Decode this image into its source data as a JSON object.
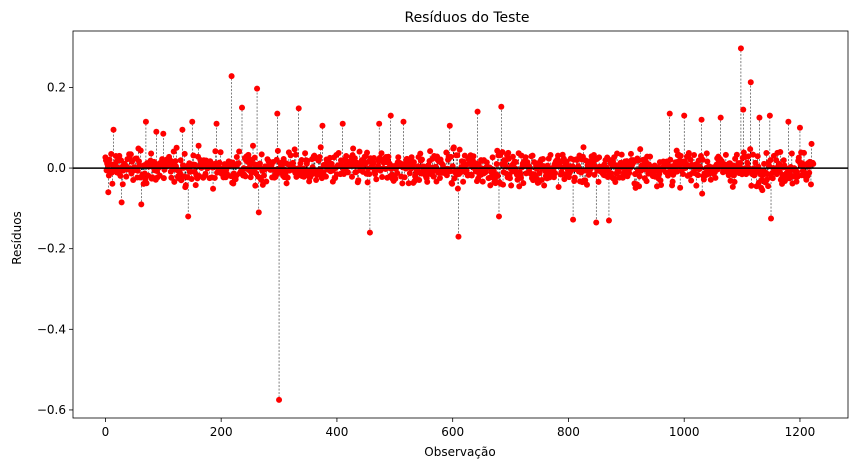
{
  "chart_data": {
    "type": "scatter",
    "title": "Resíduos do Teste",
    "xlabel": "Observação",
    "ylabel": "Resíduos",
    "xlim": [
      -56,
      1283
    ],
    "ylim": [
      -0.62,
      0.34
    ],
    "xticks": [
      0,
      200,
      400,
      600,
      800,
      1000,
      1200
    ],
    "xtick_labels": [
      "0",
      "200",
      "400",
      "600",
      "800",
      "1000",
      "1200"
    ],
    "yticks": [
      -0.6,
      -0.4,
      -0.2,
      0.0,
      0.2
    ],
    "ytick_labels": [
      "−0.6",
      "−0.4",
      "−0.2",
      "0.0",
      "0.2"
    ],
    "grid": false,
    "legend": "none",
    "n_points": 1224,
    "reference_line_y": 0.0,
    "stems": true,
    "colors": {
      "points": "#ff0000",
      "stems": "#000000",
      "zero_line": "#000000"
    },
    "notable_points": [
      {
        "x": 5,
        "y": -0.06
      },
      {
        "x": 10,
        "y": 0.035
      },
      {
        "x": 14,
        "y": 0.095
      },
      {
        "x": 28,
        "y": -0.085
      },
      {
        "x": 62,
        "y": -0.09
      },
      {
        "x": 70,
        "y": 0.115
      },
      {
        "x": 88,
        "y": 0.09
      },
      {
        "x": 100,
        "y": 0.085
      },
      {
        "x": 133,
        "y": 0.095
      },
      {
        "x": 143,
        "y": -0.12
      },
      {
        "x": 150,
        "y": 0.115
      },
      {
        "x": 192,
        "y": 0.11
      },
      {
        "x": 218,
        "y": 0.228
      },
      {
        "x": 236,
        "y": 0.15
      },
      {
        "x": 262,
        "y": 0.197
      },
      {
        "x": 265,
        "y": -0.11
      },
      {
        "x": 297,
        "y": 0.135
      },
      {
        "x": 300,
        "y": -0.575
      },
      {
        "x": 334,
        "y": 0.148
      },
      {
        "x": 375,
        "y": 0.105
      },
      {
        "x": 410,
        "y": 0.11
      },
      {
        "x": 457,
        "y": -0.16
      },
      {
        "x": 473,
        "y": 0.11
      },
      {
        "x": 493,
        "y": 0.13
      },
      {
        "x": 515,
        "y": 0.115
      },
      {
        "x": 595,
        "y": 0.105
      },
      {
        "x": 610,
        "y": -0.17
      },
      {
        "x": 643,
        "y": 0.14
      },
      {
        "x": 684,
        "y": 0.152
      },
      {
        "x": 680,
        "y": -0.12
      },
      {
        "x": 808,
        "y": -0.128
      },
      {
        "x": 848,
        "y": -0.135
      },
      {
        "x": 870,
        "y": -0.13
      },
      {
        "x": 975,
        "y": 0.135
      },
      {
        "x": 1000,
        "y": 0.13
      },
      {
        "x": 1030,
        "y": 0.12
      },
      {
        "x": 1063,
        "y": 0.125
      },
      {
        "x": 1098,
        "y": 0.297
      },
      {
        "x": 1102,
        "y": 0.145
      },
      {
        "x": 1115,
        "y": 0.213
      },
      {
        "x": 1130,
        "y": 0.125
      },
      {
        "x": 1148,
        "y": 0.13
      },
      {
        "x": 1150,
        "y": -0.125
      },
      {
        "x": 1180,
        "y": 0.115
      },
      {
        "x": 1200,
        "y": 0.1
      },
      {
        "x": 1220,
        "y": 0.06
      }
    ]
  }
}
